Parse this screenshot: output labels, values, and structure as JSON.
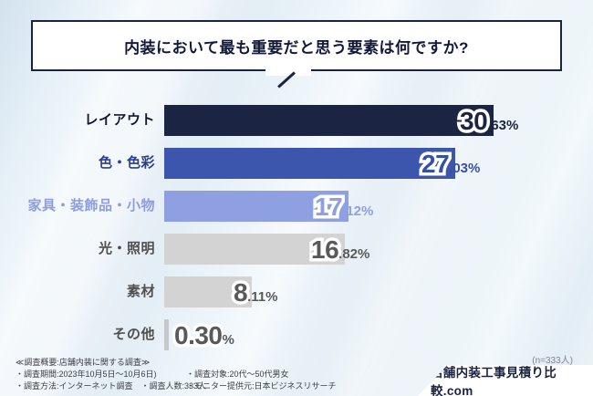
{
  "title": "内装において最も重要だと思う要素は何ですか?",
  "chart_data": {
    "type": "bar",
    "orientation": "horizontal",
    "title": "内装において最も重要だと思う要素は何ですか?",
    "categories": [
      "レイアウト",
      "色・色彩",
      "家具・装飾品・小物",
      "光・照明",
      "素材",
      "その他"
    ],
    "values": [
      30.63,
      27.03,
      17.12,
      16.82,
      8.11,
      0.3
    ],
    "value_labels": [
      "30.63%",
      "27.03%",
      "17.12%",
      "16.82%",
      "8.11%",
      "0.30%"
    ],
    "xlim": [
      0,
      33
    ],
    "grid": "off",
    "legend": "none",
    "sample_note": "(n=333人)",
    "bar_colors": [
      "#1b2443",
      "#3c56ae",
      "#8e9fe2",
      "#d3d3d3",
      "#d3d3d3",
      "#c6c9cc"
    ],
    "label_colors": [
      "#14182e",
      "#2c3e8f",
      "#8e9de0",
      "#4f4f4f",
      "#4f4f4f",
      "#4f4f4f"
    ],
    "value_colors": [
      "#1b2443",
      "#3550a5",
      "#8e9fe2",
      "#595959",
      "#595959",
      "#595959"
    ]
  },
  "footer": {
    "note_n": "(n=333人)",
    "survey_heading": "≪調査概要:店舗内装に関する調査≫",
    "survey_line_period": "・調査期間:2023年10月5日〜10月6日)",
    "survey_line_method": "・調査方法:インターネット調査　・調査人数:333人",
    "survey_line_target": "・調査対象:20代〜50代男女",
    "survey_line_monitor": "・モニター提供元:日本ビジネスリサーチ",
    "brand": "店舗内装工事見積り比較.com"
  }
}
